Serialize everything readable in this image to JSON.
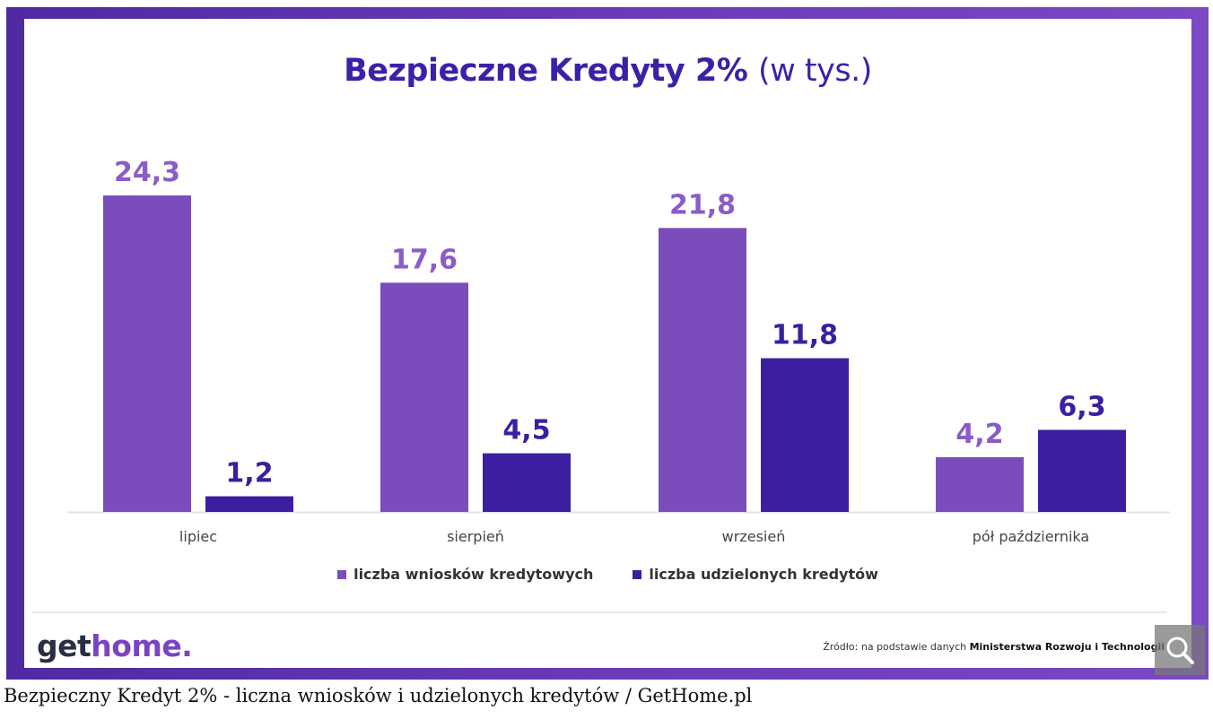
{
  "chart_data": {
    "type": "bar",
    "title": "Bezpieczne Kredyty 2%",
    "title_unit": "(w tys.)",
    "categories": [
      "lipiec",
      "sierpień",
      "wrzesień",
      "pół października"
    ],
    "series": [
      {
        "name": "liczba wniosków kredytowych",
        "values": [
          24.3,
          17.6,
          21.8,
          4.2
        ],
        "labels": [
          "24,3",
          "17,6",
          "21,8",
          "4,2"
        ],
        "color": "#7b4dbc"
      },
      {
        "name": "liczba udzielonych kredytów",
        "values": [
          1.2,
          4.5,
          11.8,
          6.3
        ],
        "labels": [
          "1,2",
          "4,5",
          "11,8",
          "6,3"
        ],
        "color": "#3b1fa0"
      }
    ],
    "ylim": [
      0,
      24.3
    ],
    "grid": false,
    "legend_position": "bottom-center",
    "label_colors": {
      "series0": "#8a5cc8",
      "series1": "#3b1fa0"
    }
  },
  "branding": {
    "logo_part1": "get",
    "logo_part2": "home."
  },
  "source": {
    "prefix": "Źródło: na podstawie danych ",
    "bold": "Ministerstwa Rozwoju i Technologii"
  },
  "caption": "Bezpieczny Kredyt 2% - liczna wniosków i udzielonych kredytów / GetHome.pl",
  "colors": {
    "frame": "#5a32ad",
    "title": "#3b21a8",
    "axis": "#e3e1ea"
  },
  "icons": {
    "zoom": "magnifier-icon"
  }
}
